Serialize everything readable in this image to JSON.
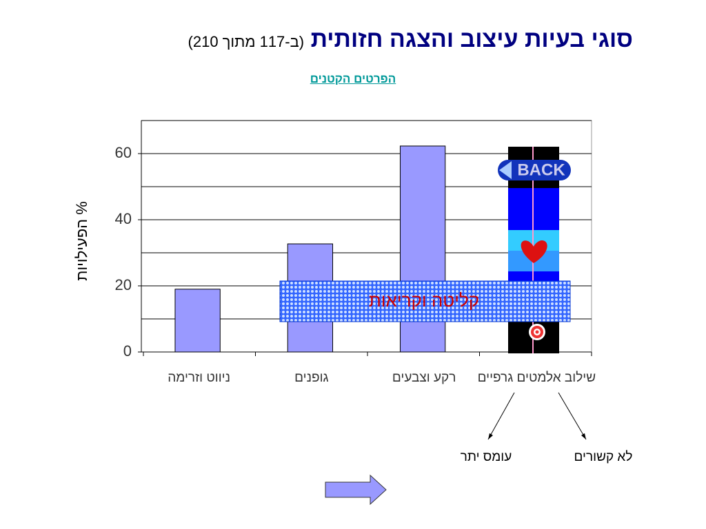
{
  "title": "סוגי בעיות עיצוב והצגה חזותית",
  "title_note": "(ב-117 מתוך 210)",
  "link": "הפרטים הקטנים",
  "chart_data": {
    "type": "bar",
    "y_label": "%  הפעילויות",
    "categories": [
      "ניווט  וזרימה",
      "גופנים",
      "רקע וצבעים",
      "שילוב אלמטים גרפיים"
    ],
    "values": [
      19,
      32.7,
      62.3,
      null
    ],
    "color": "#9999ff",
    "ylim": [
      0,
      70
    ],
    "yticks": [
      0,
      20,
      40,
      60
    ],
    "minor_yticks": [
      10,
      30,
      50,
      70
    ],
    "grid": true
  },
  "overlay": {
    "label": "קליטה וקריאות",
    "button": "BACK"
  },
  "annotations": [
    "עומס יתר",
    "לא קשורים"
  ]
}
